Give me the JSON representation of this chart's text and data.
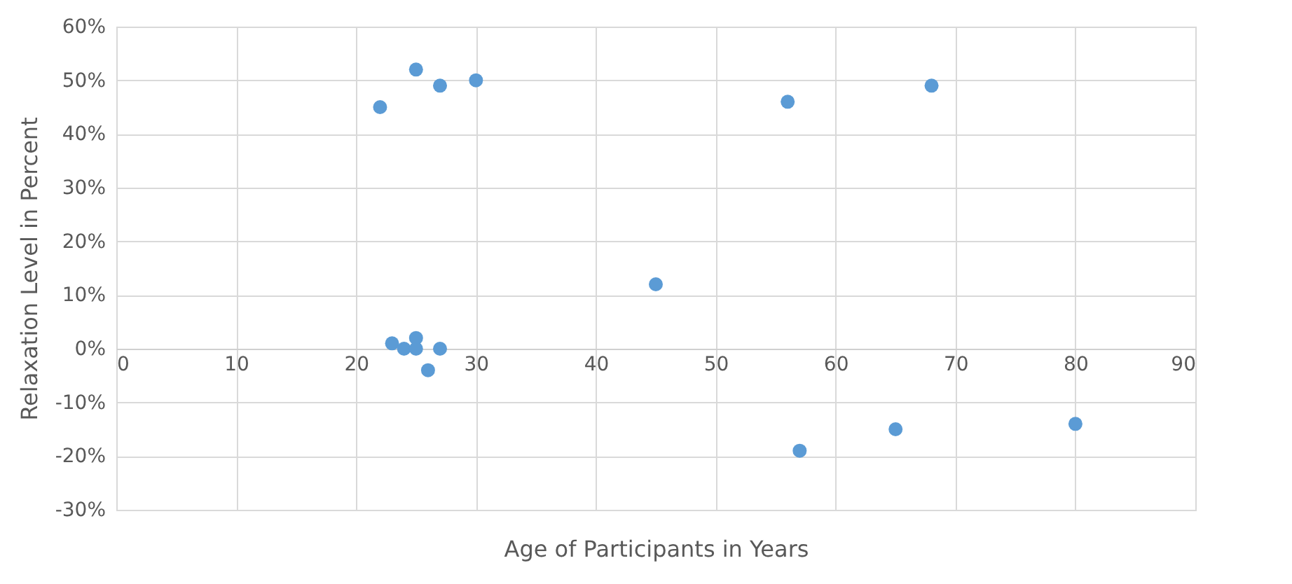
{
  "chart_data": {
    "type": "scatter",
    "xlabel": "Age  of Participants in Years",
    "ylabel": "Relaxation Level in Percent",
    "x": [
      22,
      25,
      27,
      30,
      56,
      68,
      45,
      23,
      24,
      25,
      25,
      26,
      27,
      57,
      65,
      80
    ],
    "series": [
      {
        "color": "#5b9bd5",
        "values": [
          45,
          52,
          49,
          50,
          46,
          49,
          12,
          1,
          0,
          2,
          0,
          -4,
          0,
          -19,
          -15,
          -14
        ]
      }
    ],
    "xlim": [
      0,
      90
    ],
    "xticks": [
      0,
      10,
      20,
      30,
      40,
      50,
      60,
      70,
      80,
      90
    ],
    "ylim": [
      -30,
      60
    ],
    "yticks": [
      {
        "value": -30,
        "label": "-30%"
      },
      {
        "value": -20,
        "label": "-20%"
      },
      {
        "value": -10,
        "label": "-10%"
      },
      {
        "value": 0,
        "label": "0%"
      },
      {
        "value": 10,
        "label": "10%"
      },
      {
        "value": 20,
        "label": "20%"
      },
      {
        "value": 30,
        "label": "30%"
      },
      {
        "value": 40,
        "label": "40%"
      },
      {
        "value": 50,
        "label": "50%"
      },
      {
        "value": 60,
        "label": "60%"
      }
    ],
    "grid": true,
    "marker": "circle"
  }
}
